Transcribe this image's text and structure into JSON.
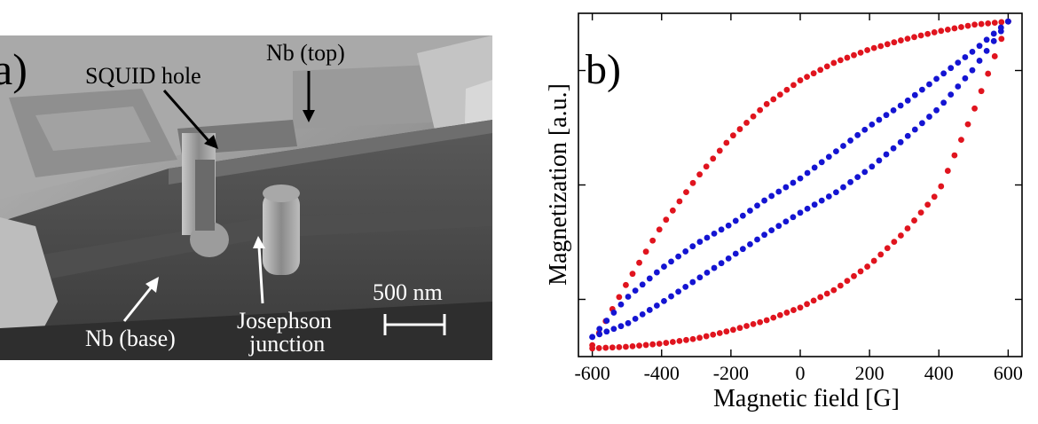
{
  "panel_a": {
    "label": "a)",
    "annotations": {
      "squid_hole": "SQUID hole",
      "nb_top": "Nb (top)",
      "nb_base": "Nb (base)",
      "junction_line1": "Josephson",
      "junction_line2": "junction"
    },
    "scale_bar": "500 nm"
  },
  "panel_b": {
    "label": "b)",
    "xlabel": "Magnetic field [G]",
    "ylabel": "Magnetization [a.u.]"
  },
  "chart_data": {
    "type": "scatter",
    "xlabel": "Magnetic field [G]",
    "ylabel": "Magnetization [a.u.]",
    "xlim": [
      -640,
      640
    ],
    "ylim": [
      -1.05,
      1.05
    ],
    "xticks": [
      -600,
      -400,
      -200,
      0,
      200,
      400,
      600
    ],
    "yticks_labeled": false,
    "grid": false,
    "series": [
      {
        "color": "#e0141e",
        "loops": "outer",
        "x": [
          -600,
          -500,
          -400,
          -300,
          -200,
          -100,
          0,
          100,
          200,
          300,
          400,
          500,
          600
        ],
        "upper": [
          -0.98,
          -0.6,
          -0.25,
          0.04,
          0.29,
          0.49,
          0.64,
          0.75,
          0.83,
          0.89,
          0.94,
          0.98,
          1.0
        ],
        "lower": [
          -1.0,
          -0.99,
          -0.97,
          -0.94,
          -0.89,
          -0.83,
          -0.75,
          -0.64,
          -0.49,
          -0.29,
          -0.04,
          0.45,
          1.0
        ]
      },
      {
        "color": "#1414d2",
        "loops": "inner",
        "x": [
          -600,
          -500,
          -400,
          -300,
          -200,
          -100,
          0,
          100,
          200,
          300,
          400,
          500,
          600
        ],
        "upper": [
          -0.93,
          -0.69,
          -0.51,
          -0.36,
          -0.24,
          -0.09,
          0.04,
          0.2,
          0.36,
          0.5,
          0.66,
          0.82,
          1.0
        ],
        "lower": [
          -0.93,
          -0.85,
          -0.72,
          -0.58,
          -0.44,
          -0.3,
          -0.17,
          -0.05,
          0.1,
          0.28,
          0.47,
          0.71,
          1.0
        ]
      }
    ]
  }
}
